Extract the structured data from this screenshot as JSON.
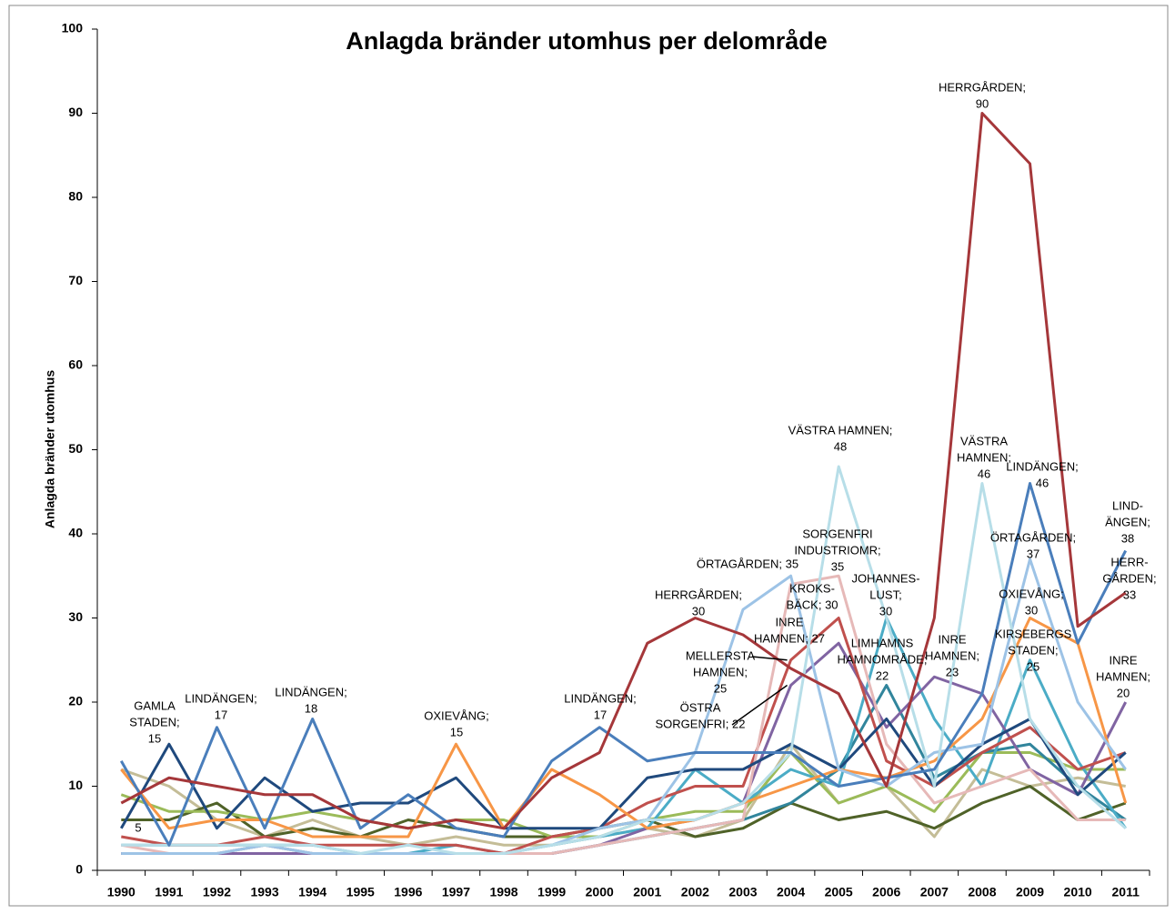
{
  "chart_data": {
    "type": "line",
    "title": "Anlagda bränder utomhus per delområde",
    "y_label": "Anlagda bränder  utomhus",
    "categories": [
      "1990",
      "1991",
      "1992",
      "1993",
      "1994",
      "1995",
      "1996",
      "1997",
      "1998",
      "1999",
      "2000",
      "2001",
      "2002",
      "2003",
      "2004",
      "2005",
      "2006",
      "2007",
      "2008",
      "2009",
      "2010",
      "2011"
    ],
    "ylim": [
      0,
      100
    ],
    "yticks": [
      0,
      10,
      20,
      30,
      40,
      50,
      60,
      70,
      80,
      90,
      100
    ],
    "grid": false,
    "series": [
      {
        "color": "#c4bd97",
        "values": [
          12,
          10,
          6,
          4,
          6,
          4,
          3,
          4,
          3,
          3,
          4,
          5,
          4,
          6,
          15,
          8,
          10,
          4,
          12,
          10,
          11,
          10
        ]
      },
      {
        "color": "#4f6228",
        "values": [
          6,
          6,
          8,
          4,
          5,
          4,
          6,
          5,
          4,
          4,
          5,
          6,
          4,
          5,
          8,
          6,
          7,
          5,
          8,
          10,
          6,
          8
        ]
      },
      {
        "color": "#9bbb59",
        "values": [
          9,
          7,
          7,
          6,
          7,
          6,
          5,
          6,
          6,
          4,
          4,
          6,
          7,
          7,
          14,
          8,
          10,
          7,
          14,
          14,
          12,
          12
        ]
      },
      {
        "color": "#31859c",
        "values": [
          2,
          2,
          2,
          3,
          2,
          2,
          2,
          2,
          2,
          2,
          3,
          4,
          5,
          6,
          8,
          12,
          22,
          11,
          14,
          15,
          10,
          6
        ]
      },
      {
        "color": "#4bacc6",
        "values": [
          3,
          3,
          3,
          3,
          3,
          2,
          2,
          3,
          2,
          3,
          4,
          5,
          12,
          8,
          12,
          10,
          30,
          18,
          10,
          25,
          13,
          5
        ]
      },
      {
        "color": "#8064a2",
        "values": [
          2,
          2,
          2,
          2,
          2,
          2,
          2,
          2,
          2,
          2,
          3,
          5,
          6,
          8,
          22,
          27,
          17,
          23,
          21,
          12,
          9,
          20
        ]
      },
      {
        "color": "#c0504d",
        "values": [
          4,
          3,
          3,
          4,
          3,
          3,
          3,
          3,
          2,
          4,
          5,
          8,
          10,
          10,
          25,
          30,
          13,
          10,
          14,
          17,
          12,
          14
        ]
      },
      {
        "color": "#e6b9b8",
        "values": [
          3,
          2,
          2,
          3,
          2,
          2,
          2,
          2,
          2,
          2,
          3,
          4,
          5,
          6,
          34,
          35,
          15,
          8,
          10,
          12,
          6,
          6
        ]
      },
      {
        "color": "#1f497d",
        "values": [
          5,
          15,
          5,
          11,
          7,
          8,
          8,
          11,
          5,
          5,
          5,
          11,
          12,
          12,
          15,
          12,
          18,
          10,
          15,
          18,
          9,
          14
        ]
      },
      {
        "color": "#f79646",
        "values": [
          12,
          5,
          6,
          6,
          4,
          4,
          4,
          15,
          5,
          12,
          9,
          5,
          6,
          8,
          10,
          12,
          11,
          13,
          18,
          30,
          27,
          8
        ]
      },
      {
        "color": "#9dc3e6",
        "values": [
          2,
          2,
          2,
          3,
          2,
          2,
          2,
          2,
          2,
          3,
          5,
          6,
          14,
          31,
          35,
          12,
          10,
          14,
          15,
          37,
          20,
          12
        ]
      },
      {
        "color": "#b7dee8",
        "values": [
          3,
          3,
          3,
          3,
          3,
          2,
          3,
          2,
          2,
          3,
          4,
          6,
          6,
          8,
          14,
          48,
          30,
          10,
          46,
          18,
          10,
          5
        ]
      },
      {
        "color": "#4a7ebb",
        "values": [
          13,
          3,
          17,
          5,
          18,
          5,
          9,
          5,
          4,
          13,
          17,
          13,
          14,
          14,
          14,
          10,
          11,
          12,
          21,
          46,
          27,
          38
        ]
      },
      {
        "color": "#a5373a",
        "values": [
          8,
          11,
          10,
          9,
          9,
          6,
          5,
          6,
          5,
          11,
          14,
          27,
          30,
          28,
          24,
          21,
          10,
          30,
          90,
          84,
          29,
          33
        ]
      }
    ],
    "annotations": [
      {
        "lines": [
          "GAMLA",
          "STADEN;",
          "15"
        ],
        "x": "1991",
        "y": 15
      },
      {
        "lines": [
          "LINDÄNGEN;",
          "17"
        ],
        "x": "1992",
        "y": 17
      },
      {
        "lines": [
          "LINDÄNGEN;",
          "18"
        ],
        "x": "1994",
        "y": 18
      },
      {
        "lines": [
          "OXIEVÅNG;",
          "15"
        ],
        "x": "1997",
        "y": 15
      },
      {
        "lines": [
          "LINDÄNGEN;",
          "17"
        ],
        "x": "2000",
        "y": 17
      },
      {
        "lines": [
          "HERRGÅRDEN;",
          "30"
        ],
        "x": "2002",
        "y": 30
      },
      {
        "lines": [
          "ÖRTAGÅRDEN; 35"
        ],
        "x": "2004",
        "y": 35
      },
      {
        "lines": [
          "VÄSTRA HAMNEN;",
          "48"
        ],
        "x": "2005",
        "y": 48
      },
      {
        "lines": [
          "SORGENFRI",
          "INDUSTRIOMR;",
          "35"
        ],
        "x": "2005",
        "y": 35
      },
      {
        "lines": [
          "KROKS-",
          "BÄCK; 30"
        ],
        "x": "2005",
        "y": 30
      },
      {
        "lines": [
          "INRE",
          "HAMNEN; 27"
        ],
        "x": "2005",
        "y": 27
      },
      {
        "lines": [
          "MELLERSTA",
          "HAMNEN;",
          "25"
        ],
        "x": "2004",
        "y": 25
      },
      {
        "lines": [
          "ÖSTRA",
          "SORGENFRI; 22"
        ],
        "x": "2004",
        "y": 22
      },
      {
        "lines": [
          "JOHANNES-",
          "LUST;",
          "30"
        ],
        "x": "2006",
        "y": 30
      },
      {
        "lines": [
          "LIMHAMNS",
          "HAMNOMRÅDE;",
          "22"
        ],
        "x": "2006",
        "y": 22
      },
      {
        "lines": [
          "INRE",
          "HAMNEN;",
          "23"
        ],
        "x": "2007",
        "y": 23
      },
      {
        "lines": [
          "HERRGÅRDEN;",
          "90"
        ],
        "x": "2008",
        "y": 90
      },
      {
        "lines": [
          "VÄSTRA",
          "HAMNEN;",
          "46"
        ],
        "x": "2008",
        "y": 46
      },
      {
        "lines": [
          "LINDÄNGEN;",
          "46"
        ],
        "x": "2009",
        "y": 46
      },
      {
        "lines": [
          "ÖRTAGÅRDEN;",
          "37"
        ],
        "x": "2009",
        "y": 37
      },
      {
        "lines": [
          "OXIEVÅNG;",
          "30"
        ],
        "x": "2009",
        "y": 30
      },
      {
        "lines": [
          "KIRSEBERGS",
          "STADEN;",
          "25"
        ],
        "x": "2009",
        "y": 25
      },
      {
        "lines": [
          "LIND-",
          "ÄNGEN;",
          "38"
        ],
        "x": "2011",
        "y": 38
      },
      {
        "lines": [
          "HERR-",
          "GÅRDEN;",
          "33"
        ],
        "x": "2011",
        "y": 33
      },
      {
        "lines": [
          "INRE",
          "HAMNEN;",
          "20"
        ],
        "x": "2011",
        "y": 20
      },
      {
        "lines": [
          "5"
        ],
        "x": "1990",
        "y": 5
      }
    ]
  }
}
